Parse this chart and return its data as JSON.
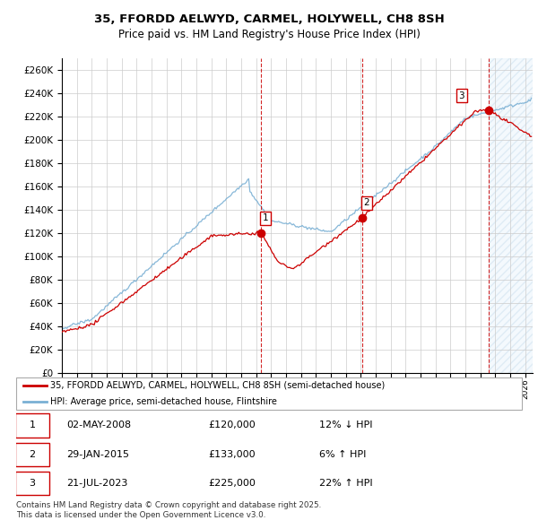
{
  "title": "35, FFORDD AELWYD, CARMEL, HOLYWELL, CH8 8SH",
  "subtitle": "Price paid vs. HM Land Registry's House Price Index (HPI)",
  "ylim": [
    0,
    270000
  ],
  "yticks": [
    0,
    20000,
    40000,
    60000,
    80000,
    100000,
    120000,
    140000,
    160000,
    180000,
    200000,
    220000,
    240000,
    260000
  ],
  "xlim_start": 1995.0,
  "xlim_end": 2026.5,
  "red_color": "#cc0000",
  "hpi_color": "#7ab0d4",
  "sale_markers": [
    {
      "year": 2008.33,
      "price": 120000,
      "label": "1"
    },
    {
      "year": 2015.08,
      "price": 133000,
      "label": "2"
    },
    {
      "year": 2023.55,
      "price": 225000,
      "label": "3"
    }
  ],
  "sale_info": [
    {
      "label": "1",
      "date": "02-MAY-2008",
      "price": "£120,000",
      "change": "12% ↓ HPI"
    },
    {
      "label": "2",
      "date": "29-JAN-2015",
      "price": "£133,000",
      "change": "6% ↑ HPI"
    },
    {
      "label": "3",
      "date": "21-JUL-2023",
      "price": "£225,000",
      "change": "22% ↑ HPI"
    }
  ],
  "legend_red_label": "35, FFORDD AELWYD, CARMEL, HOLYWELL, CH8 8SH (semi-detached house)",
  "legend_blue_label": "HPI: Average price, semi-detached house, Flintshire",
  "footer": "Contains HM Land Registry data © Crown copyright and database right 2025.\nThis data is licensed under the Open Government Licence v3.0.",
  "shaded_region_start": 2023.55,
  "background_color": "#ffffff",
  "grid_color": "#cccccc"
}
